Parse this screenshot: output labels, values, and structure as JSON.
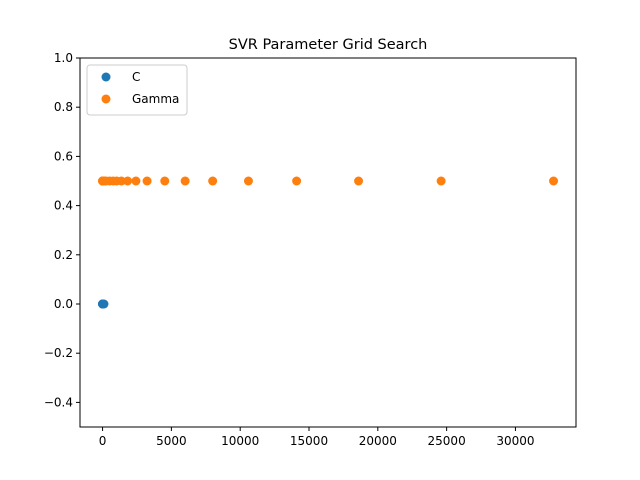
{
  "chart_data": {
    "type": "scatter",
    "title": "SVR Parameter Grid Search",
    "xlabel": "",
    "ylabel": "",
    "xlim": [
      -1640,
      34400
    ],
    "ylim": [
      -0.5,
      1.0
    ],
    "xticks": [
      0,
      5000,
      10000,
      15000,
      20000,
      25000,
      30000
    ],
    "yticks": [
      -0.4,
      -0.2,
      0.0,
      0.2,
      0.4,
      0.6,
      0.8,
      1.0
    ],
    "xtick_labels": [
      "0",
      "5000",
      "10000",
      "15000",
      "20000",
      "25000",
      "30000"
    ],
    "ytick_labels": [
      "−0.4",
      "−0.2",
      "0.0",
      "0.2",
      "0.4",
      "0.6",
      "0.8",
      "1.0"
    ],
    "grid": false,
    "legend_position": "top-left",
    "series": [
      {
        "name": "C",
        "color": "#1f77b4",
        "x": [
          0.001,
          0.01,
          0.1,
          1,
          10,
          100
        ],
        "y": [
          0,
          0,
          0,
          0,
          0,
          0
        ]
      },
      {
        "name": "Gamma",
        "color": "#ff7f0e",
        "x": [
          1,
          2,
          4,
          8,
          16,
          32,
          64,
          128,
          256,
          512,
          768,
          1024,
          1365,
          1820,
          2425,
          3235,
          4520,
          6000,
          8000,
          10600,
          14100,
          18600,
          24600,
          32768
        ],
        "y": [
          0.5,
          0.5,
          0.5,
          0.5,
          0.5,
          0.5,
          0.5,
          0.5,
          0.5,
          0.5,
          0.5,
          0.5,
          0.5,
          0.5,
          0.5,
          0.5,
          0.5,
          0.5,
          0.5,
          0.5,
          0.5,
          0.5,
          0.5,
          0.5
        ]
      }
    ]
  }
}
